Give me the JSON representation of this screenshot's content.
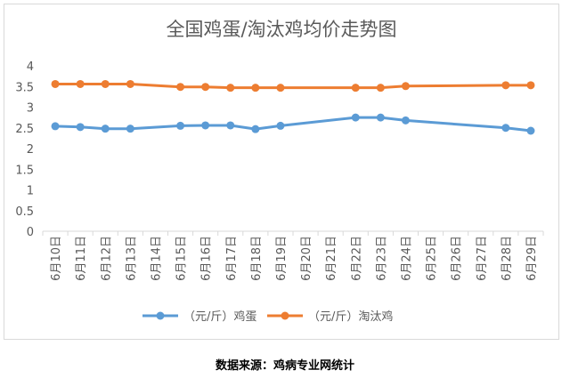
{
  "chart_data": {
    "type": "line",
    "title": "全国鸡蛋/淘汰鸡均价走势图",
    "categories": [
      "6月10日",
      "6月11日",
      "6月12日",
      "6月13日",
      "6月14日",
      "6月15日",
      "6月16日",
      "6月17日",
      "6月18日",
      "6月19日",
      "6月20日",
      "6月21日",
      "6月22日",
      "6月23日",
      "6月24日",
      "6月25日",
      "6月26日",
      "6月27日",
      "6月28日",
      "6月29日"
    ],
    "ylim": [
      0,
      4
    ],
    "yticks": [
      "0",
      "0.5",
      "1",
      "1.5",
      "2",
      "2.5",
      "3",
      "3.5",
      "4"
    ],
    "grid": false,
    "legend_position": "bottom",
    "series": [
      {
        "name": "（元/斤）鸡蛋",
        "color": "#5b9bd5",
        "values": [
          2.54,
          2.52,
          2.48,
          2.48,
          null,
          2.55,
          2.56,
          2.56,
          2.47,
          2.55,
          null,
          null,
          2.75,
          2.75,
          2.68,
          null,
          null,
          null,
          2.5,
          2.43
        ]
      },
      {
        "name": "（元/斤）淘汰鸡",
        "color": "#ed7d31",
        "values": [
          3.56,
          3.56,
          3.56,
          3.56,
          null,
          3.49,
          3.49,
          3.47,
          3.47,
          3.47,
          null,
          null,
          3.47,
          3.47,
          3.51,
          null,
          null,
          null,
          3.53,
          3.53
        ]
      }
    ]
  },
  "source_note": "数据来源：鸡病专业网统计"
}
